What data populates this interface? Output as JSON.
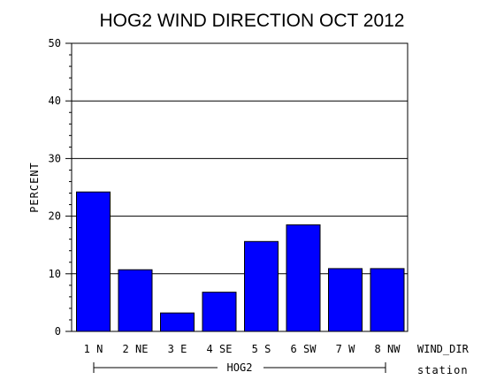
{
  "chart_data": {
    "type": "bar",
    "title": "HOG2 WIND DIRECTION OCT 2012",
    "ylabel": "PERCENT",
    "xlabel": "WIND_DIR",
    "group_label": "HOG2",
    "group_axis_label": "station",
    "categories": [
      "1 N",
      "2 NE",
      "3 E",
      "4 SE",
      "5 S",
      "6 SW",
      "7 W",
      "8 NW"
    ],
    "values": [
      24.2,
      10.7,
      3.2,
      6.8,
      15.6,
      18.5,
      10.9,
      10.9
    ],
    "ylim": [
      0,
      50
    ],
    "yticks": [
      0,
      10,
      20,
      30,
      40,
      50
    ],
    "grid": true,
    "bar_color": "#0000ff"
  }
}
